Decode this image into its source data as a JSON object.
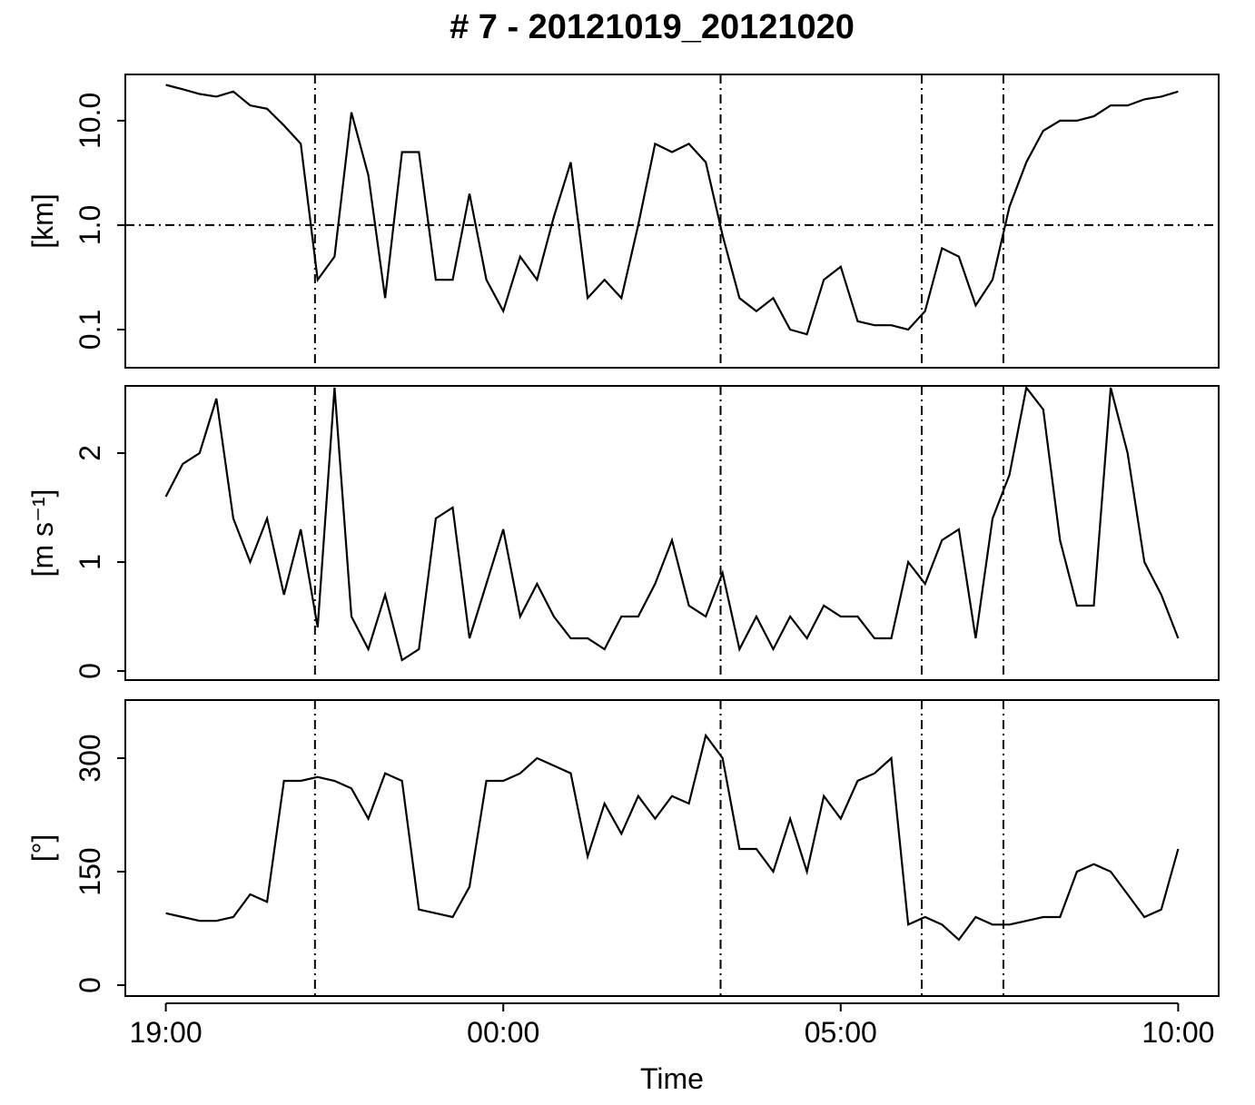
{
  "title": "# 7  -  20121019_20121020",
  "chart_data": [
    {
      "type": "line",
      "ylabel": "[km]",
      "log": true,
      "color": "#000000",
      "x": [
        0,
        0.25,
        0.5,
        0.75,
        1,
        1.25,
        1.5,
        1.75,
        2,
        2.25,
        2.5,
        2.75,
        3,
        3.25,
        3.5,
        3.75,
        4,
        4.25,
        4.5,
        4.75,
        5,
        5.25,
        5.5,
        5.75,
        6,
        6.25,
        6.5,
        6.75,
        7,
        7.25,
        7.5,
        7.75,
        8,
        8.25,
        8.5,
        8.75,
        9,
        9.25,
        9.5,
        9.75,
        10,
        10.25,
        10.5,
        10.75,
        11,
        11.25,
        11.5,
        11.75,
        12,
        12.25,
        12.5,
        12.75,
        13,
        13.25,
        13.5,
        13.75,
        14,
        14.25,
        14.5,
        14.75,
        15
      ],
      "values": [
        22,
        20,
        18,
        17,
        19,
        14,
        13,
        9,
        6,
        0.3,
        0.5,
        12,
        3,
        0.2,
        5,
        5,
        0.3,
        0.3,
        2,
        0.3,
        0.15,
        0.5,
        0.3,
        1.2,
        4,
        0.2,
        0.3,
        0.2,
        1,
        6,
        5,
        6,
        4,
        0.8,
        0.2,
        0.15,
        0.2,
        0.1,
        0.09,
        0.3,
        0.4,
        0.12,
        0.11,
        0.11,
        0.1,
        0.15,
        0.6,
        0.5,
        0.17,
        0.3,
        1.5,
        4,
        8,
        10,
        10,
        11,
        14,
        14,
        16,
        17,
        19
      ],
      "xlim": [
        -0.6,
        15.6
      ],
      "ylim": [
        0.0431,
        27.7
      ],
      "yticks": [
        0.1,
        {
          "value": 1,
          "label": "1.0"
        },
        {
          "value": 10,
          "label": "10.0"
        }
      ],
      "hline": 1,
      "vlines": [
        2.21,
        8.22,
        11.2,
        12.41
      ]
    },
    {
      "type": "line",
      "ylabel": "[m s⁻¹]",
      "color": "#000000",
      "x": [
        0,
        0.25,
        0.5,
        0.75,
        1,
        1.25,
        1.5,
        1.75,
        2,
        2.25,
        2.5,
        2.75,
        3,
        3.25,
        3.5,
        3.75,
        4,
        4.25,
        4.5,
        4.75,
        5,
        5.25,
        5.5,
        5.75,
        6,
        6.25,
        6.5,
        6.75,
        7,
        7.25,
        7.5,
        7.75,
        8,
        8.25,
        8.5,
        8.75,
        9,
        9.25,
        9.5,
        9.75,
        10,
        10.25,
        10.5,
        10.75,
        11,
        11.25,
        11.5,
        11.75,
        12,
        12.25,
        12.5,
        12.75,
        13,
        13.25,
        13.5,
        13.75,
        14,
        14.25,
        14.5,
        14.75,
        15
      ],
      "values": [
        1.6,
        1.9,
        2.0,
        2.5,
        1.4,
        1.0,
        1.4,
        0.7,
        1.3,
        0.4,
        2.6,
        0.5,
        0.2,
        0.7,
        0.1,
        0.2,
        1.4,
        1.5,
        0.3,
        0.8,
        1.3,
        0.5,
        0.8,
        0.5,
        0.3,
        0.3,
        0.2,
        0.5,
        0.5,
        0.8,
        1.2,
        0.6,
        0.5,
        0.9,
        0.2,
        0.5,
        0.2,
        0.5,
        0.3,
        0.6,
        0.5,
        0.5,
        0.3,
        0.3,
        1.0,
        0.8,
        1.2,
        1.3,
        0.3,
        1.4,
        1.8,
        2.6,
        2.4,
        1.2,
        0.6,
        0.6,
        2.6,
        2.0,
        1.0,
        0.7,
        0.3
      ],
      "xlim": [
        -0.6,
        15.6
      ],
      "ylim": [
        -0.083,
        2.617
      ],
      "yticks": [
        0,
        1,
        2
      ],
      "vlines": [
        2.21,
        8.22,
        11.2,
        12.41
      ]
    },
    {
      "type": "line",
      "ylabel": "[°]",
      "color": "#000000",
      "xlabel": "Time",
      "x": [
        0,
        0.25,
        0.5,
        0.75,
        1,
        1.25,
        1.5,
        1.75,
        2,
        2.25,
        2.5,
        2.75,
        3,
        3.25,
        3.5,
        3.75,
        4,
        4.25,
        4.5,
        4.75,
        5,
        5.25,
        5.5,
        5.75,
        6,
        6.25,
        6.5,
        6.75,
        7,
        7.25,
        7.5,
        7.75,
        8,
        8.25,
        8.5,
        8.75,
        9,
        9.25,
        9.5,
        9.75,
        10,
        10.25,
        10.5,
        10.75,
        11,
        11.25,
        11.5,
        11.75,
        12,
        12.25,
        12.5,
        12.75,
        13,
        13.25,
        13.5,
        13.75,
        14,
        14.25,
        14.5,
        14.75,
        15
      ],
      "values": [
        95,
        90,
        85,
        85,
        90,
        120,
        110,
        270,
        270,
        275,
        270,
        260,
        220,
        280,
        270,
        100,
        95,
        90,
        130,
        270,
        270,
        280,
        300,
        290,
        280,
        170,
        240,
        200,
        250,
        220,
        250,
        240,
        330,
        300,
        180,
        180,
        150,
        220,
        150,
        250,
        220,
        270,
        280,
        300,
        80,
        90,
        80,
        60,
        90,
        80,
        80,
        85,
        90,
        90,
        150,
        160,
        150,
        120,
        90,
        100,
        180
      ],
      "xlim": [
        -0.6,
        15.6
      ],
      "ylim": [
        -14.4,
        376.8
      ],
      "yticks": [
        0,
        150,
        300
      ],
      "xticks": [
        {
          "value": 0,
          "label": "19:00"
        },
        {
          "value": 5,
          "label": "00:00"
        },
        {
          "value": 10,
          "label": "05:00"
        },
        {
          "value": 15,
          "label": "10:00"
        }
      ],
      "vlines": [
        2.21,
        8.22,
        11.2,
        12.41
      ]
    }
  ]
}
